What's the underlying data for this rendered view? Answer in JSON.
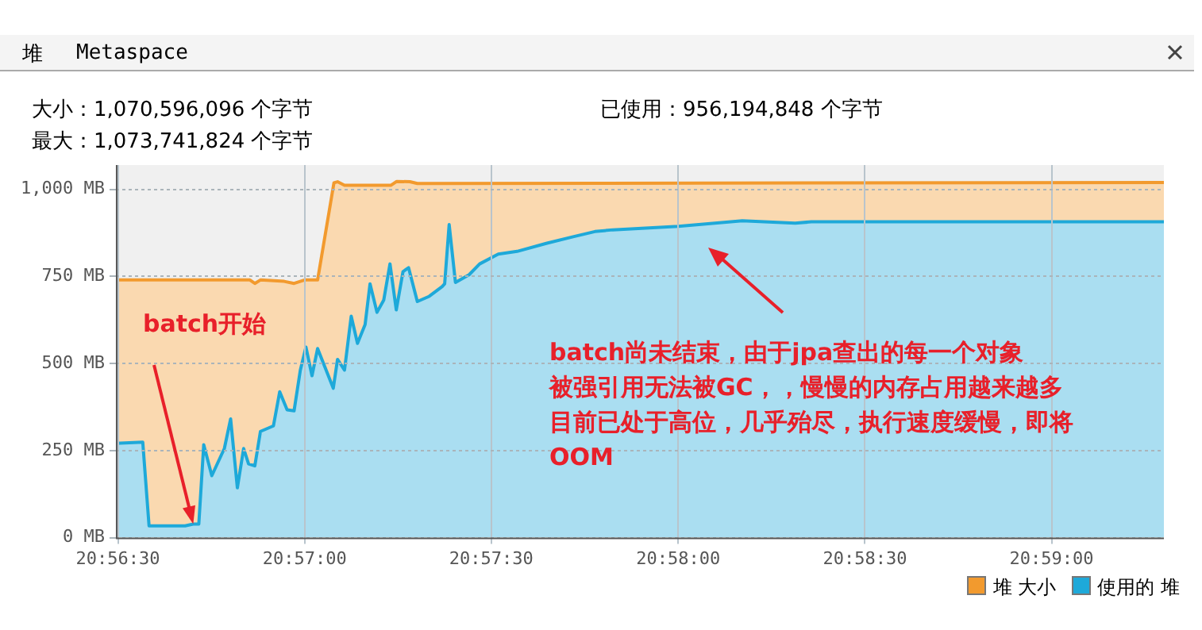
{
  "chart_data": {
    "type": "area",
    "annotations": [
      "堆",
      "Metaspace",
      "大小：1,070,596,096 个字节",
      "最大：1,073,741,824 个字节",
      "已使用：956,194,848 个字节",
      {
        "text": "batch开始",
        "x": 20.94503,
        "y": 39
      },
      "batch尚未结束，由于jpa查出的每一个对象",
      "被强引用无法被GC，，慢慢的内存占用越来越多",
      "目前已处于高位，几乎殆尽，执行速度缓慢，即将",
      "OOM"
    ],
    "series": [
      {
        "name": "堆 大小",
        "color": "#f29a2e",
        "x": [
          20.94158,
          20.94756,
          20.94778,
          20.94803,
          20.94909,
          20.94953,
          20.95,
          20.95058,
          20.95131,
          20.95147,
          20.95178,
          20.95386,
          20.95411,
          20.9547,
          20.95503,
          20.98834
        ],
        "values": [
          740,
          740,
          730,
          740,
          736,
          730,
          740,
          740,
          1019,
          1022,
          1012,
          1012,
          1023,
          1022,
          1017,
          1020
        ]
      },
      {
        "name": "使用的 堆",
        "color": "#1ea9d9",
        "x": [
          20.94158,
          20.94278,
          20.94306,
          20.94467,
          20.94503,
          20.94528,
          20.9455,
          20.94586,
          20.94642,
          20.9467,
          20.947,
          20.94728,
          20.9475,
          20.94778,
          20.94803,
          20.94861,
          20.94889,
          20.94922,
          20.94953,
          20.94981,
          20.95006,
          20.95033,
          20.95058,
          20.95128,
          20.95147,
          20.95178,
          20.95208,
          20.95236,
          20.9527,
          20.95292,
          20.95323,
          20.95353,
          20.95381,
          20.95409,
          20.95439,
          20.95464,
          20.95503,
          20.95556,
          20.95614,
          20.95625,
          20.95645,
          20.95673,
          20.95734,
          20.95781,
          20.95864,
          20.95948,
          20.96078,
          20.96198,
          20.96295,
          20.96375,
          20.96667,
          20.96953,
          20.97189,
          20.97261,
          20.98834
        ],
        "values": [
          271,
          274,
          34,
          34,
          39,
          39,
          267,
          178,
          256,
          341,
          143,
          256,
          212,
          206,
          305,
          321,
          419,
          367,
          364,
          481,
          547,
          465,
          543,
          429,
          512,
          481,
          636,
          558,
          612,
          729,
          647,
          682,
          786,
          654,
          764,
          775,
          678,
          693,
          721,
          729,
          899,
          733,
          755,
          786,
          814,
          822,
          845,
          864,
          879,
          884,
          894,
          910,
          903,
          907,
          907
        ]
      }
    ],
    "xlim": [
      20.94158,
      20.98834
    ],
    "xticks": [
      {
        "value": 20.94167,
        "label": "20:56:30"
      },
      {
        "value": 20.95,
        "label": "20:57:00"
      },
      {
        "value": 20.95833,
        "label": "20:57:30"
      },
      {
        "value": 20.96667,
        "label": "20:58:00"
      },
      {
        "value": 20.975,
        "label": "20:58:30"
      },
      {
        "value": 20.98333,
        "label": "20:59:00"
      }
    ],
    "ylim": [
      0,
      1070
    ],
    "yticks": [
      {
        "value": 0,
        "label": "0 MB"
      },
      {
        "value": 250,
        "label": "250 MB"
      },
      {
        "value": 500,
        "label": "500 MB"
      },
      {
        "value": 750,
        "label": "750 MB"
      },
      {
        "value": 1000,
        "label": "1,000 MB"
      }
    ],
    "grid": true,
    "legend": "bottom right",
    "marker": "none",
    "line_style": "solid"
  }
}
